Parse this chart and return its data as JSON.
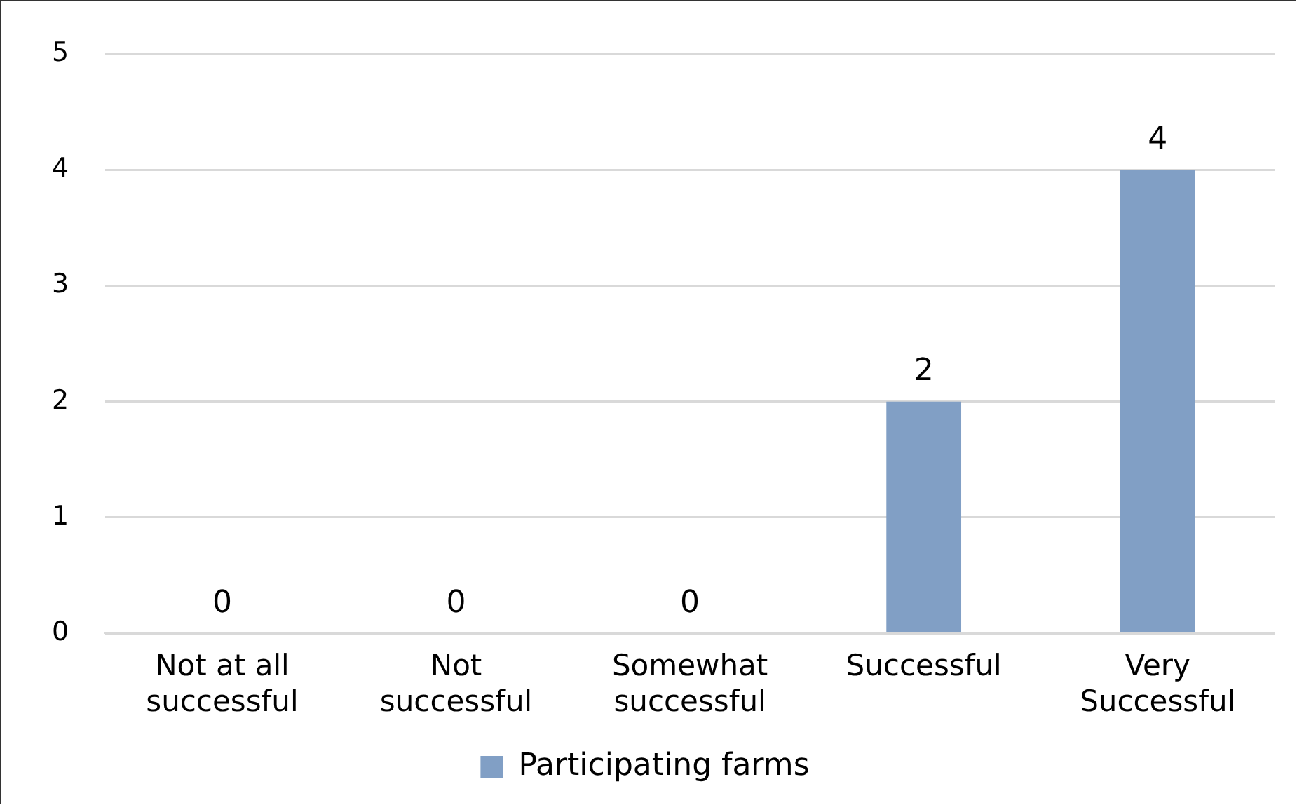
{
  "chart_data": {
    "type": "bar",
    "categories": [
      "Not at all successful",
      "Not successful",
      "Somewhat successful",
      "Successful",
      "Very Successful"
    ],
    "series": [
      {
        "name": "Participating farms",
        "color": "#819fc5",
        "values": [
          0,
          0,
          0,
          2,
          4
        ]
      }
    ],
    "ylim": [
      0,
      5
    ],
    "yticks": [
      0,
      1,
      2,
      3,
      4,
      5
    ],
    "grid": "y",
    "legend": "bottom",
    "data_labels": true
  }
}
